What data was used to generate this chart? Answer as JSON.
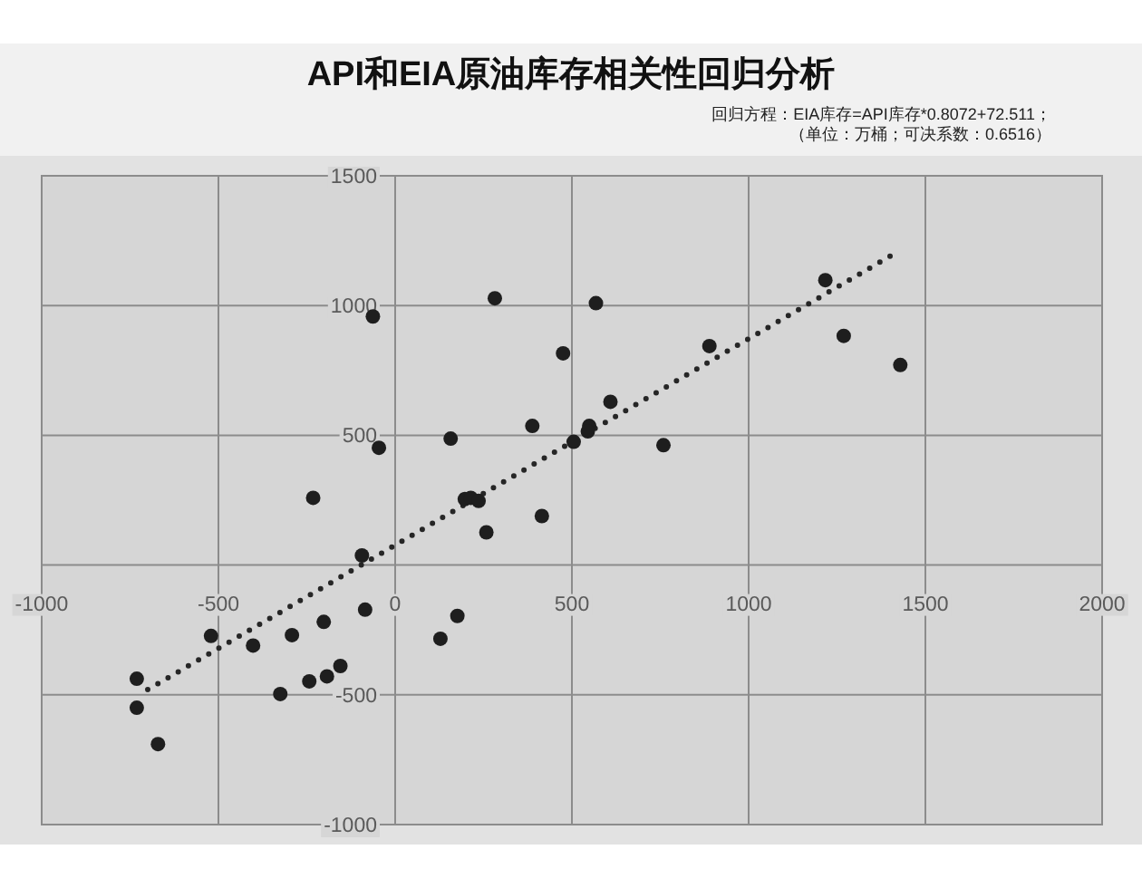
{
  "chart_data": {
    "type": "scatter",
    "title": "API和EIA原油库存相关性回归分析",
    "annotations": [
      "回归方程：EIA库存=API库存*0.8072+72.511；",
      "（单位：万桶；可决系数：0.6516）"
    ],
    "xlim": [
      -1000,
      2000
    ],
    "ylim": [
      -1000,
      1500
    ],
    "xticks": [
      -1000,
      -500,
      0,
      500,
      1000,
      1500,
      2000
    ],
    "yticks": [
      -1000,
      -500,
      {
        "value": 0,
        "label": null
      },
      500,
      1000,
      1500
    ],
    "grid": true,
    "marker": "circle",
    "series": [
      {
        "color": "#1e1e1e",
        "x": [
          282,
          -63,
          475,
          388,
          157,
          -46,
          505,
          -232,
          197,
          214,
          236,
          258,
          415,
          568,
          1217,
          1269,
          1429,
          889,
          609,
          549,
          545,
          759,
          -94,
          -85,
          -202,
          -292,
          -402,
          -521,
          128,
          176,
          -155,
          -193,
          -243,
          -325,
          -731,
          -731,
          -671
        ],
        "values": [
          1028,
          958,
          816,
          536,
          487,
          452,
          475,
          259,
          254,
          259,
          247,
          126,
          189,
          1009,
          1098,
          883,
          771,
          844,
          629,
          536,
          515,
          462,
          37,
          -172,
          -219,
          -270,
          -310,
          -273,
          -284,
          -196,
          -389,
          -429,
          -448,
          -497,
          -438,
          -550,
          -690
        ]
      },
      {
        "type": "line",
        "color": "#262626",
        "line_style": "dotted",
        "marker": "none",
        "x": [
          -700,
          1400
        ],
        "values": [
          -480,
          1190
        ]
      }
    ]
  }
}
